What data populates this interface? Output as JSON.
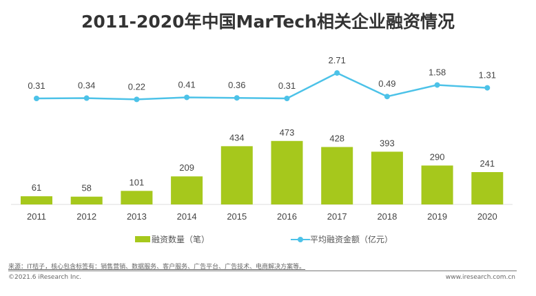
{
  "chart_data": {
    "type": "bar+line",
    "title": "2011-2020年中国MarTech相关企业融资情况",
    "categories": [
      "2011",
      "2012",
      "2013",
      "2014",
      "2015",
      "2016",
      "2017",
      "2018",
      "2019",
      "2020"
    ],
    "series": [
      {
        "name": "融资数量（笔）",
        "type": "bar",
        "color": "#a6c81c",
        "values": [
          61,
          58,
          101,
          209,
          434,
          473,
          428,
          393,
          290,
          241
        ]
      },
      {
        "name": "平均融资金额（亿元）",
        "type": "line",
        "color": "#4cc2e8",
        "values": [
          0.31,
          0.34,
          0.22,
          0.41,
          0.36,
          0.31,
          2.71,
          0.49,
          1.58,
          1.31
        ]
      }
    ],
    "legend_position": "bottom",
    "grid": false
  },
  "footer": {
    "source": "来源：IT桔子，核心包含标签有：销售营销、数据服务、客户服务、广告平台、广告技术、电商解决方案等。",
    "copyright": "©2021.6 iResearch Inc.",
    "website": "www.iresearch.com.cn"
  }
}
